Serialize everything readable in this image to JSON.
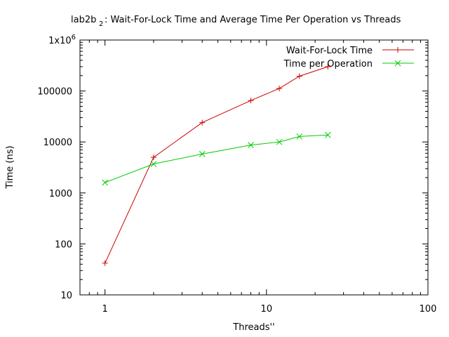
{
  "chart_data": {
    "type": "line",
    "title_main": "lab2b",
    "title_sub": "2",
    "title_rest": ": Wait-For-Lock Time and Average Time Per Operation vs Threads",
    "xlabel": "Threads''",
    "ylabel": "Time (ns)",
    "x_scale": "log",
    "y_scale": "log",
    "xlim": [
      0.7,
      100
    ],
    "ylim": [
      10,
      1000000
    ],
    "x_ticks": [
      {
        "value": 1,
        "label": "1"
      },
      {
        "value": 10,
        "label": "10"
      },
      {
        "value": 100,
        "label": "100"
      }
    ],
    "y_ticks": [
      {
        "value": 10,
        "label": "10"
      },
      {
        "value": 100,
        "label": "100"
      },
      {
        "value": 1000,
        "label": "1000"
      },
      {
        "value": 10000,
        "label": "10000"
      },
      {
        "value": 100000,
        "label": "100000"
      },
      {
        "value": 1000000,
        "label": "1x10",
        "sup": "6"
      }
    ],
    "grid": false,
    "legend_position": "top-right",
    "series": [
      {
        "name": "Wait-For-Lock Time",
        "color": "#cc0000",
        "marker": "plus",
        "x": [
          1,
          2,
          4,
          8,
          12,
          16,
          24
        ],
        "y": [
          42,
          5000,
          24000,
          65000,
          112000,
          195000,
          300000
        ]
      },
      {
        "name": "Time per Operation",
        "color": "#00cc00",
        "marker": "cross",
        "x": [
          1,
          2,
          4,
          8,
          12,
          16,
          24
        ],
        "y": [
          1600,
          3700,
          5800,
          8700,
          10000,
          12800,
          13700
        ]
      }
    ]
  }
}
